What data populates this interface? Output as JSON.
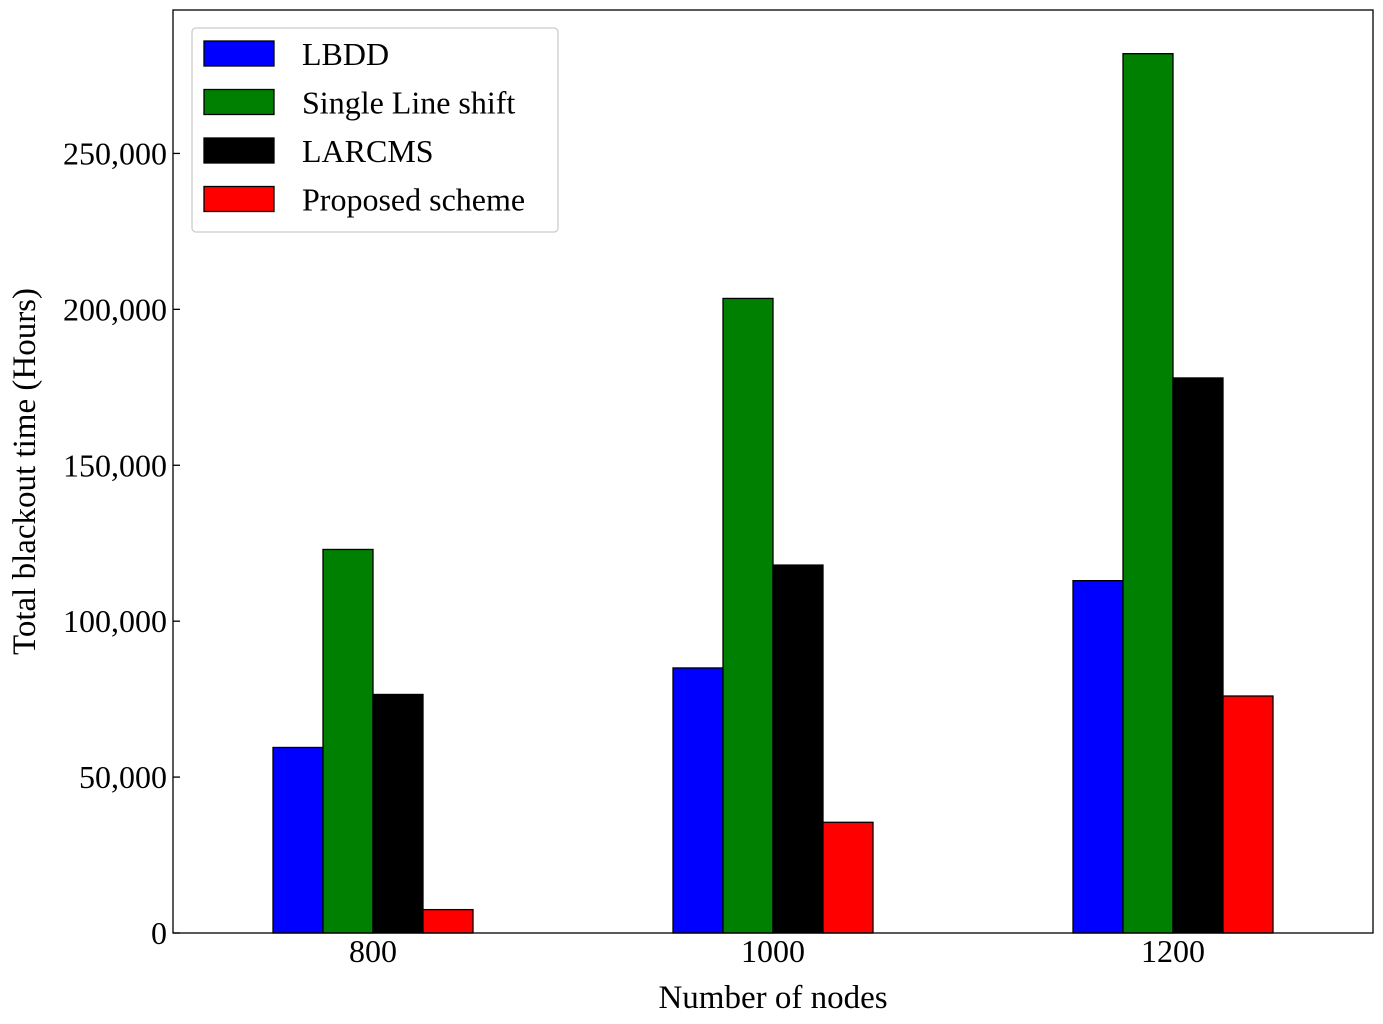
{
  "chart_data": {
    "type": "bar",
    "title": "",
    "xlabel": "Number of nodes",
    "ylabel": "Total blackout time (Hours)",
    "categories": [
      "800",
      "1000",
      "1200"
    ],
    "ylim": [
      0,
      296000
    ],
    "yticks": [
      0,
      50000,
      100000,
      150000,
      200000,
      250000
    ],
    "ytick_labels": [
      "0",
      "50,000",
      "100,000",
      "150,000",
      "200,000",
      "250,000"
    ],
    "grid": false,
    "legend_position": "top-left",
    "series": [
      {
        "name": "LBDD",
        "color": "#0000ff",
        "values": [
          59500,
          85000,
          113000
        ]
      },
      {
        "name": "Single Line shift",
        "color": "#008000",
        "values": [
          123000,
          203500,
          282000
        ]
      },
      {
        "name": "LARCMS",
        "color": "#000000",
        "values": [
          76500,
          118000,
          178000
        ]
      },
      {
        "name": "Proposed scheme",
        "color": "#ff0000",
        "values": [
          7500,
          35500,
          76000
        ]
      }
    ]
  }
}
